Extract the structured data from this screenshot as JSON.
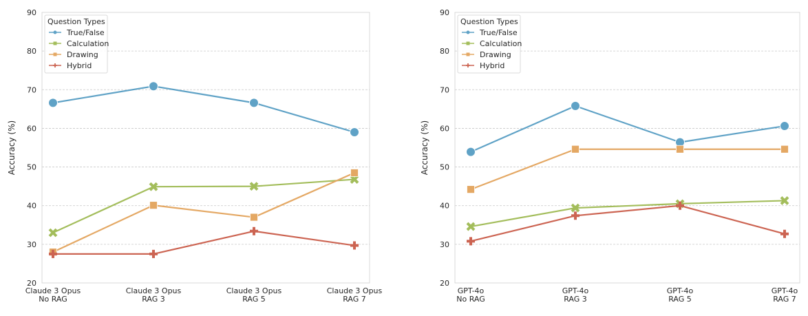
{
  "chart_data": [
    {
      "type": "line",
      "ylabel": "Accuracy (%)",
      "ylim": [
        20,
        90
      ],
      "yticks": [
        20,
        30,
        40,
        50,
        60,
        70,
        80,
        90
      ],
      "grid": "horizontal dashed",
      "legend": {
        "title": "Question Types",
        "placement": "top-left"
      },
      "categories": [
        [
          "Claude 3 Opus",
          "No RAG"
        ],
        [
          "Claude 3 Opus",
          "RAG 3"
        ],
        [
          "Claude 3 Opus",
          "RAG 5"
        ],
        [
          "Claude 3 Opus",
          "RAG 7"
        ]
      ],
      "series": [
        {
          "name": "True/False",
          "color": "#5fa2c6",
          "marker": "circle",
          "values": [
            66.6,
            70.9,
            66.6,
            59.0
          ]
        },
        {
          "name": "Calculation",
          "color": "#a3bd5b",
          "marker": "x",
          "values": [
            33.0,
            44.9,
            45.0,
            46.8
          ]
        },
        {
          "name": "Drawing",
          "color": "#e4a864",
          "marker": "square",
          "values": [
            28.0,
            40.1,
            37.0,
            48.5
          ]
        },
        {
          "name": "Hybrid",
          "color": "#cc6452",
          "marker": "plus",
          "values": [
            27.5,
            27.5,
            33.4,
            29.7
          ]
        }
      ]
    },
    {
      "type": "line",
      "ylabel": "Accuracy (%)",
      "ylim": [
        20,
        90
      ],
      "yticks": [
        20,
        30,
        40,
        50,
        60,
        70,
        80,
        90
      ],
      "grid": "horizontal dashed",
      "legend": {
        "title": "Question Types",
        "placement": "top-left"
      },
      "categories": [
        [
          "GPT-4o",
          "No RAG"
        ],
        [
          "GPT-4o",
          "RAG 3"
        ],
        [
          "GPT-4o",
          "RAG 5"
        ],
        [
          "GPT-4o",
          "RAG 7"
        ]
      ],
      "series": [
        {
          "name": "True/False",
          "color": "#5fa2c6",
          "marker": "circle",
          "values": [
            53.9,
            65.8,
            56.4,
            60.6
          ]
        },
        {
          "name": "Calculation",
          "color": "#a3bd5b",
          "marker": "x",
          "values": [
            34.6,
            39.4,
            40.5,
            41.3
          ]
        },
        {
          "name": "Drawing",
          "color": "#e4a864",
          "marker": "square",
          "values": [
            44.2,
            54.6,
            54.6,
            54.6
          ]
        },
        {
          "name": "Hybrid",
          "color": "#cc6452",
          "marker": "plus",
          "values": [
            30.8,
            37.4,
            40.0,
            32.7
          ]
        }
      ]
    }
  ]
}
